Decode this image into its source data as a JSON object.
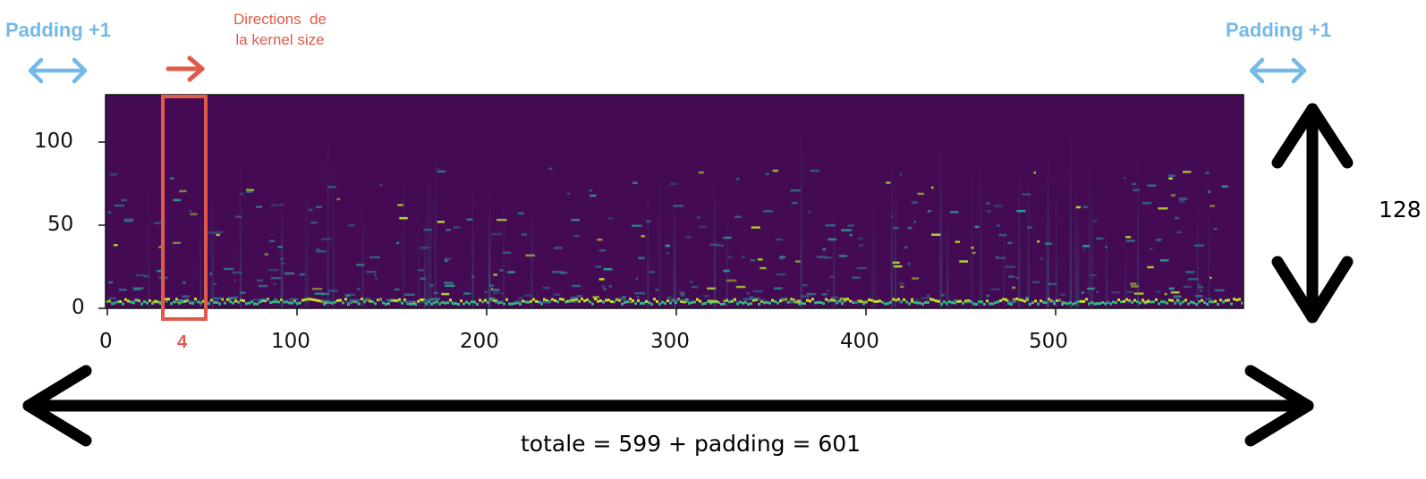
{
  "annotations": {
    "padding_left": "Padding +1",
    "padding_right": "Padding +1",
    "kernel_direction": "Directions  de\nla kernel size",
    "kernel_size": "4",
    "height_value": "128",
    "total": "totale = 599 + padding = 601"
  },
  "chart_data": {
    "type": "heatmap",
    "xlim": [
      0,
      599
    ],
    "ylim": [
      0,
      128
    ],
    "x_ticks": [
      "0",
      "100",
      "200",
      "300",
      "400",
      "500"
    ],
    "y_ticks": [
      "0",
      "50",
      "100"
    ],
    "colormap": "viridis"
  },
  "colors": {
    "padding": "#74b9ea",
    "kernel": "#e05a4a",
    "heatmap_background": "#440a54",
    "arrow_black": "#000000"
  }
}
